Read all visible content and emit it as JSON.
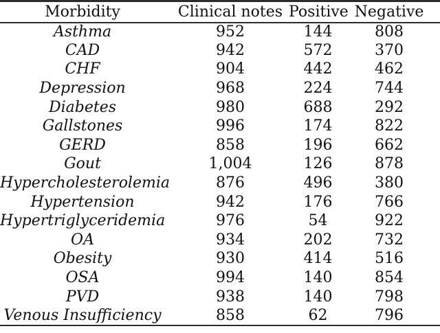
{
  "colors": {
    "background": "#ffffff",
    "text": "#111111",
    "rule": "#2b2b2b"
  },
  "table": {
    "columns": [
      "Morbidity",
      "Clinical notes",
      "Positive",
      "Negative"
    ],
    "rows": [
      [
        "Asthma",
        "952",
        "144",
        "808"
      ],
      [
        "CAD",
        "942",
        "572",
        "370"
      ],
      [
        "CHF",
        "904",
        "442",
        "462"
      ],
      [
        "Depression",
        "968",
        "224",
        "744"
      ],
      [
        "Diabetes",
        "980",
        "688",
        "292"
      ],
      [
        "Gallstones",
        "996",
        "174",
        "822"
      ],
      [
        "GERD",
        "858",
        "196",
        "662"
      ],
      [
        "Gout",
        "1,004",
        "126",
        "878"
      ],
      [
        "Hypercholesterolemia",
        "876",
        "496",
        "380"
      ],
      [
        "Hypertension",
        "942",
        "176",
        "766"
      ],
      [
        "Hypertriglyceridemia",
        "976",
        "54",
        "922"
      ],
      [
        "OA",
        "934",
        "202",
        "732"
      ],
      [
        "Obesity",
        "930",
        "414",
        "516"
      ],
      [
        "OSA",
        "994",
        "140",
        "854"
      ],
      [
        "PVD",
        "938",
        "140",
        "798"
      ],
      [
        "Venous Insufficiency",
        "858",
        "62",
        "796"
      ]
    ]
  }
}
